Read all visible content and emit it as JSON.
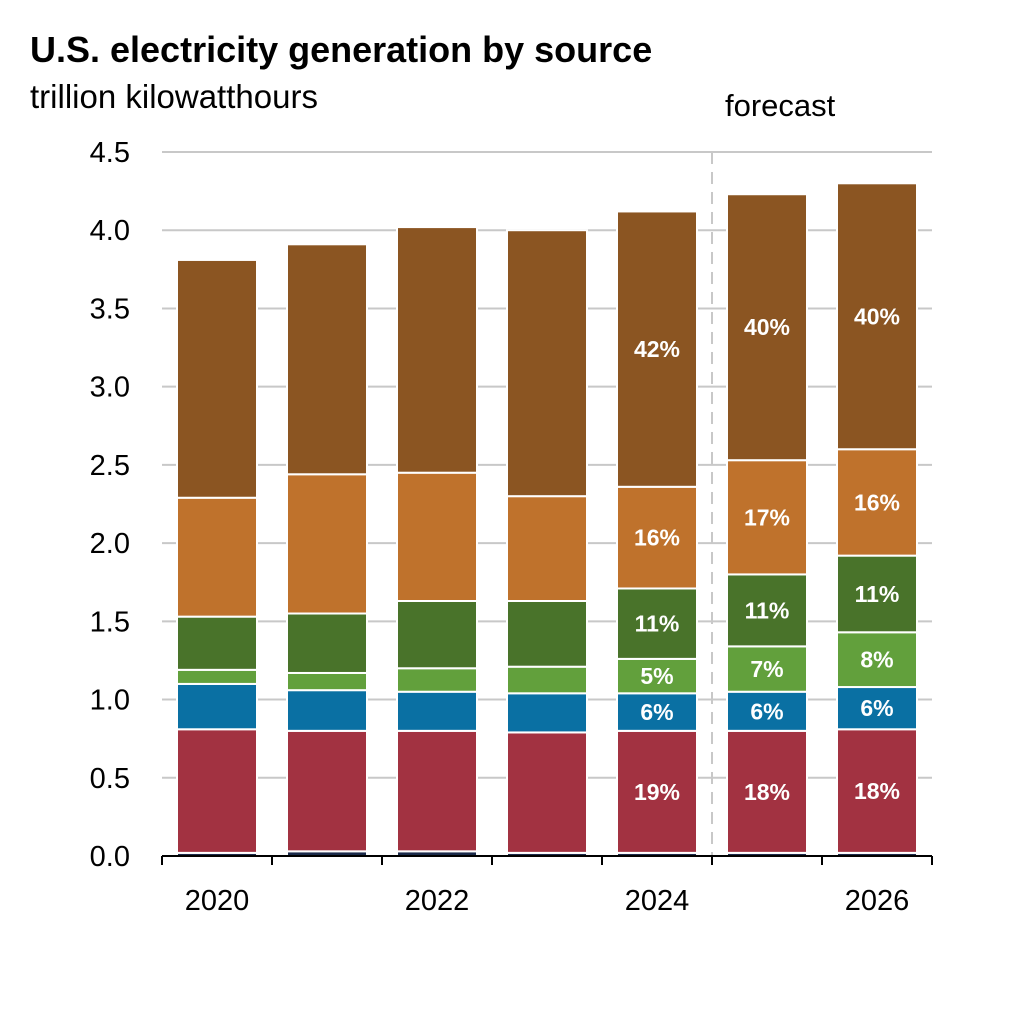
{
  "chart_data": {
    "type": "bar",
    "stacked": true,
    "title": "U.S. electricity generation by source",
    "subtitle": "trillion kilowatthours",
    "xlabel": "",
    "ylabel": "",
    "ylim": [
      0,
      4.5
    ],
    "yticks": [
      "0.0",
      "0.5",
      "1.0",
      "1.5",
      "2.0",
      "2.5",
      "3.0",
      "3.5",
      "4.0",
      "4.5"
    ],
    "categories": [
      "2020",
      "2021",
      "2022",
      "2023",
      "2024",
      "2025",
      "2026"
    ],
    "xtick_labels": [
      "2020",
      "",
      "2022",
      "",
      "2024",
      "",
      "2026"
    ],
    "grid": true,
    "forecast_label": "forecast",
    "forecast_start_index": 5,
    "series": [
      {
        "color": "#1b2a4a",
        "values": [
          0.02,
          0.03,
          0.03,
          0.02,
          0.02,
          0.02,
          0.02
        ]
      },
      {
        "color": "#a23241",
        "values": [
          0.79,
          0.77,
          0.77,
          0.77,
          0.78,
          0.78,
          0.79
        ]
      },
      {
        "color": "#0a70a3",
        "values": [
          0.29,
          0.26,
          0.25,
          0.25,
          0.24,
          0.25,
          0.27
        ]
      },
      {
        "color": "#62a03c",
        "values": [
          0.09,
          0.11,
          0.15,
          0.17,
          0.22,
          0.29,
          0.35
        ]
      },
      {
        "color": "#49732a",
        "values": [
          0.34,
          0.38,
          0.43,
          0.42,
          0.45,
          0.46,
          0.49
        ]
      },
      {
        "color": "#bf722c",
        "values": [
          0.76,
          0.89,
          0.82,
          0.67,
          0.65,
          0.73,
          0.68
        ]
      },
      {
        "color": "#8b5522",
        "values": [
          1.52,
          1.47,
          1.57,
          1.7,
          1.76,
          1.7,
          1.7
        ]
      }
    ],
    "data_labels": [
      [
        "",
        "",
        "",
        "",
        "",
        "",
        ""
      ],
      [
        "",
        "",
        "",
        "",
        "19%",
        "18%",
        "18%"
      ],
      [
        "",
        "",
        "",
        "",
        "6%",
        "6%",
        "6%"
      ],
      [
        "",
        "",
        "",
        "",
        "5%",
        "7%",
        "8%"
      ],
      [
        "",
        "",
        "",
        "",
        "11%",
        "11%",
        "11%"
      ],
      [
        "",
        "",
        "",
        "",
        "16%",
        "17%",
        "16%"
      ],
      [
        "",
        "",
        "",
        "",
        "42%",
        "40%",
        "40%"
      ]
    ]
  }
}
